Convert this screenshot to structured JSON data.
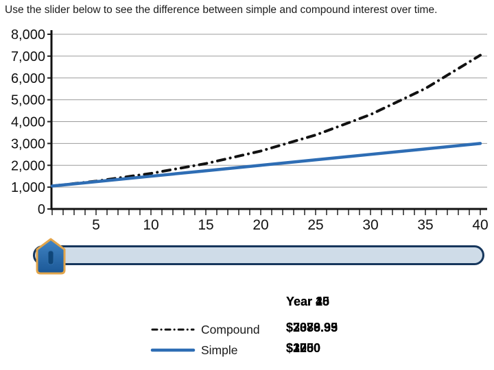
{
  "title": "Use the slider below to see the difference between simple and compound interest over time.",
  "chart_data": {
    "type": "line",
    "title": "",
    "x": [
      1,
      5,
      10,
      15,
      20,
      25,
      30,
      35,
      40
    ],
    "series": [
      {
        "name": "Compound",
        "line_style": "dash-dot",
        "color": "#111111",
        "values": [
          1050,
          1276.28,
          1628.89,
          2078.93,
          2653.3,
          3386.35,
          4321.94,
          5516.02,
          7039.99
        ]
      },
      {
        "name": "Simple",
        "line_style": "solid",
        "color": "#2e6db4",
        "values": [
          1050,
          1250,
          1500,
          1750,
          2000,
          2250,
          2500,
          2750,
          3000
        ]
      }
    ],
    "x_range": [
      1,
      40
    ],
    "y_range": [
      0,
      8000
    ],
    "x_ticks_labeled": [
      5,
      10,
      15,
      20,
      25,
      30,
      35,
      40
    ],
    "minor_tick_step": 1,
    "y_ticks": [
      {
        "value": 0,
        "label": "0"
      },
      {
        "value": 1000,
        "label": "1,000"
      },
      {
        "value": 2000,
        "label": "2,000"
      },
      {
        "value": 3000,
        "label": "3,000"
      },
      {
        "value": 4000,
        "label": "4,000"
      },
      {
        "value": 5000,
        "label": "5,000"
      },
      {
        "value": 6000,
        "label": "6,000"
      },
      {
        "value": 7000,
        "label": "7,000"
      },
      {
        "value": 8000,
        "label": "8,000"
      }
    ],
    "grid": "horizontal-only",
    "legend_position": "bottom-left"
  },
  "slider": {
    "orientation": "horizontal",
    "thumb_position": "left"
  },
  "legend": {
    "items": [
      {
        "label": "Compound"
      },
      {
        "label": "Simple"
      }
    ]
  },
  "readout": {
    "year_label_overlays": [
      "Year 15",
      "Year 25",
      "Year 40"
    ],
    "compound_value_overlays": [
      "$2078.93",
      "$3386.35",
      "$7039.99"
    ],
    "simple_value_overlays": [
      "$1750",
      "$2250",
      "$3000"
    ]
  },
  "colors": {
    "simple_line": "#2e6db4",
    "compound_line": "#111111",
    "grid": "#9b9b9b",
    "track_fill": "#cfdce8",
    "track_border": "#16365c",
    "thumb_fill_top": "#4285c4",
    "thumb_fill_bottom": "#1a5796",
    "thumb_border": "#e2a54b"
  }
}
